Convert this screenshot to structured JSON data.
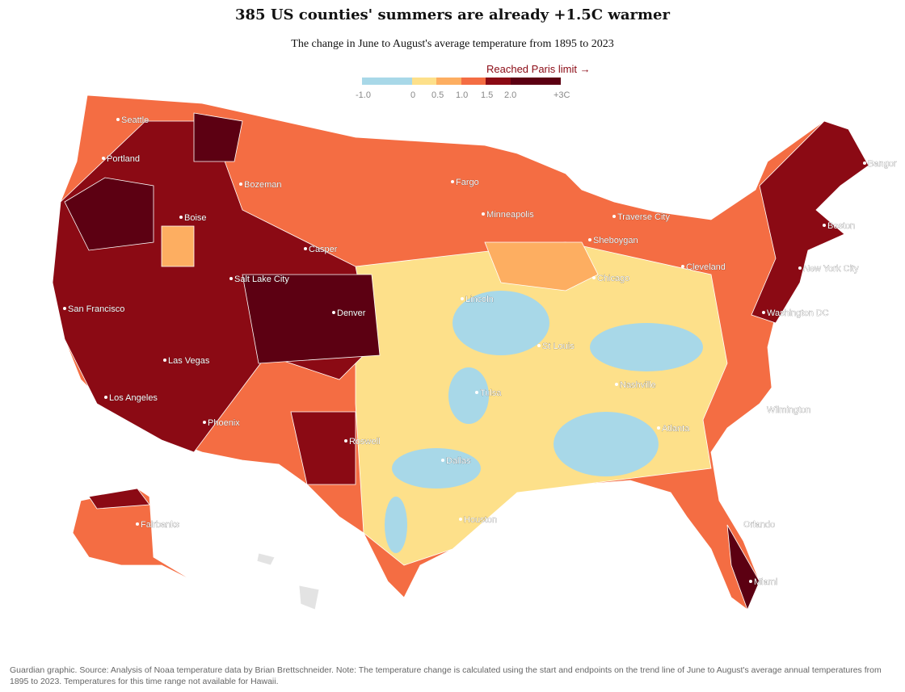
{
  "header": {
    "title": "385 US counties' summers are already +1.5C warmer",
    "subtitle": "The change in June to August's average temperature from 1895 to 2023"
  },
  "legend": {
    "annotation": "Reached Paris limit →",
    "bins": [
      {
        "from": -1.0,
        "to": 0,
        "color": "#a8d8e8"
      },
      {
        "from": 0,
        "to": 0.5,
        "color": "#fde08a"
      },
      {
        "from": 0.5,
        "to": 1.0,
        "color": "#fdae61"
      },
      {
        "from": 1.0,
        "to": 1.5,
        "color": "#f46d43"
      },
      {
        "from": 1.5,
        "to": 2.0,
        "color": "#8b0a14"
      },
      {
        "from": 2.0,
        "to": 3.0,
        "color": "#5c0012"
      }
    ],
    "ticks": [
      "-1.0",
      "0",
      "0.5",
      "1.0",
      "1.5",
      "2.0",
      "+3C"
    ]
  },
  "cities": [
    "Seattle",
    "Portland",
    "Boise",
    "Bozeman",
    "Fargo",
    "Minneapolis",
    "Traverse City",
    "Bangor",
    "Boston",
    "Sheboygan",
    "Casper",
    "Salt Lake City",
    "Cleveland",
    "New York City",
    "Chicago",
    "Lincoln",
    "San Francisco",
    "Denver",
    "Washington DC",
    "St Louis",
    "Las Vegas",
    "Nashville",
    "Tulsa",
    "Los Angeles",
    "Wilmington",
    "Atlanta",
    "Phoenix",
    "Roswell",
    "Dallas",
    "Houston",
    "Fairbanks",
    "Orlando",
    "Miami"
  ],
  "footer": "Guardian graphic. Source: Analysis of Noaa temperature data by Brian Brettschneider. Note: The temperature change is calculated using the start and endpoints on the trend line of June to August's average annual temperatures from 1895 to 2023. Temperatures for this time range not available for Hawaii."
}
